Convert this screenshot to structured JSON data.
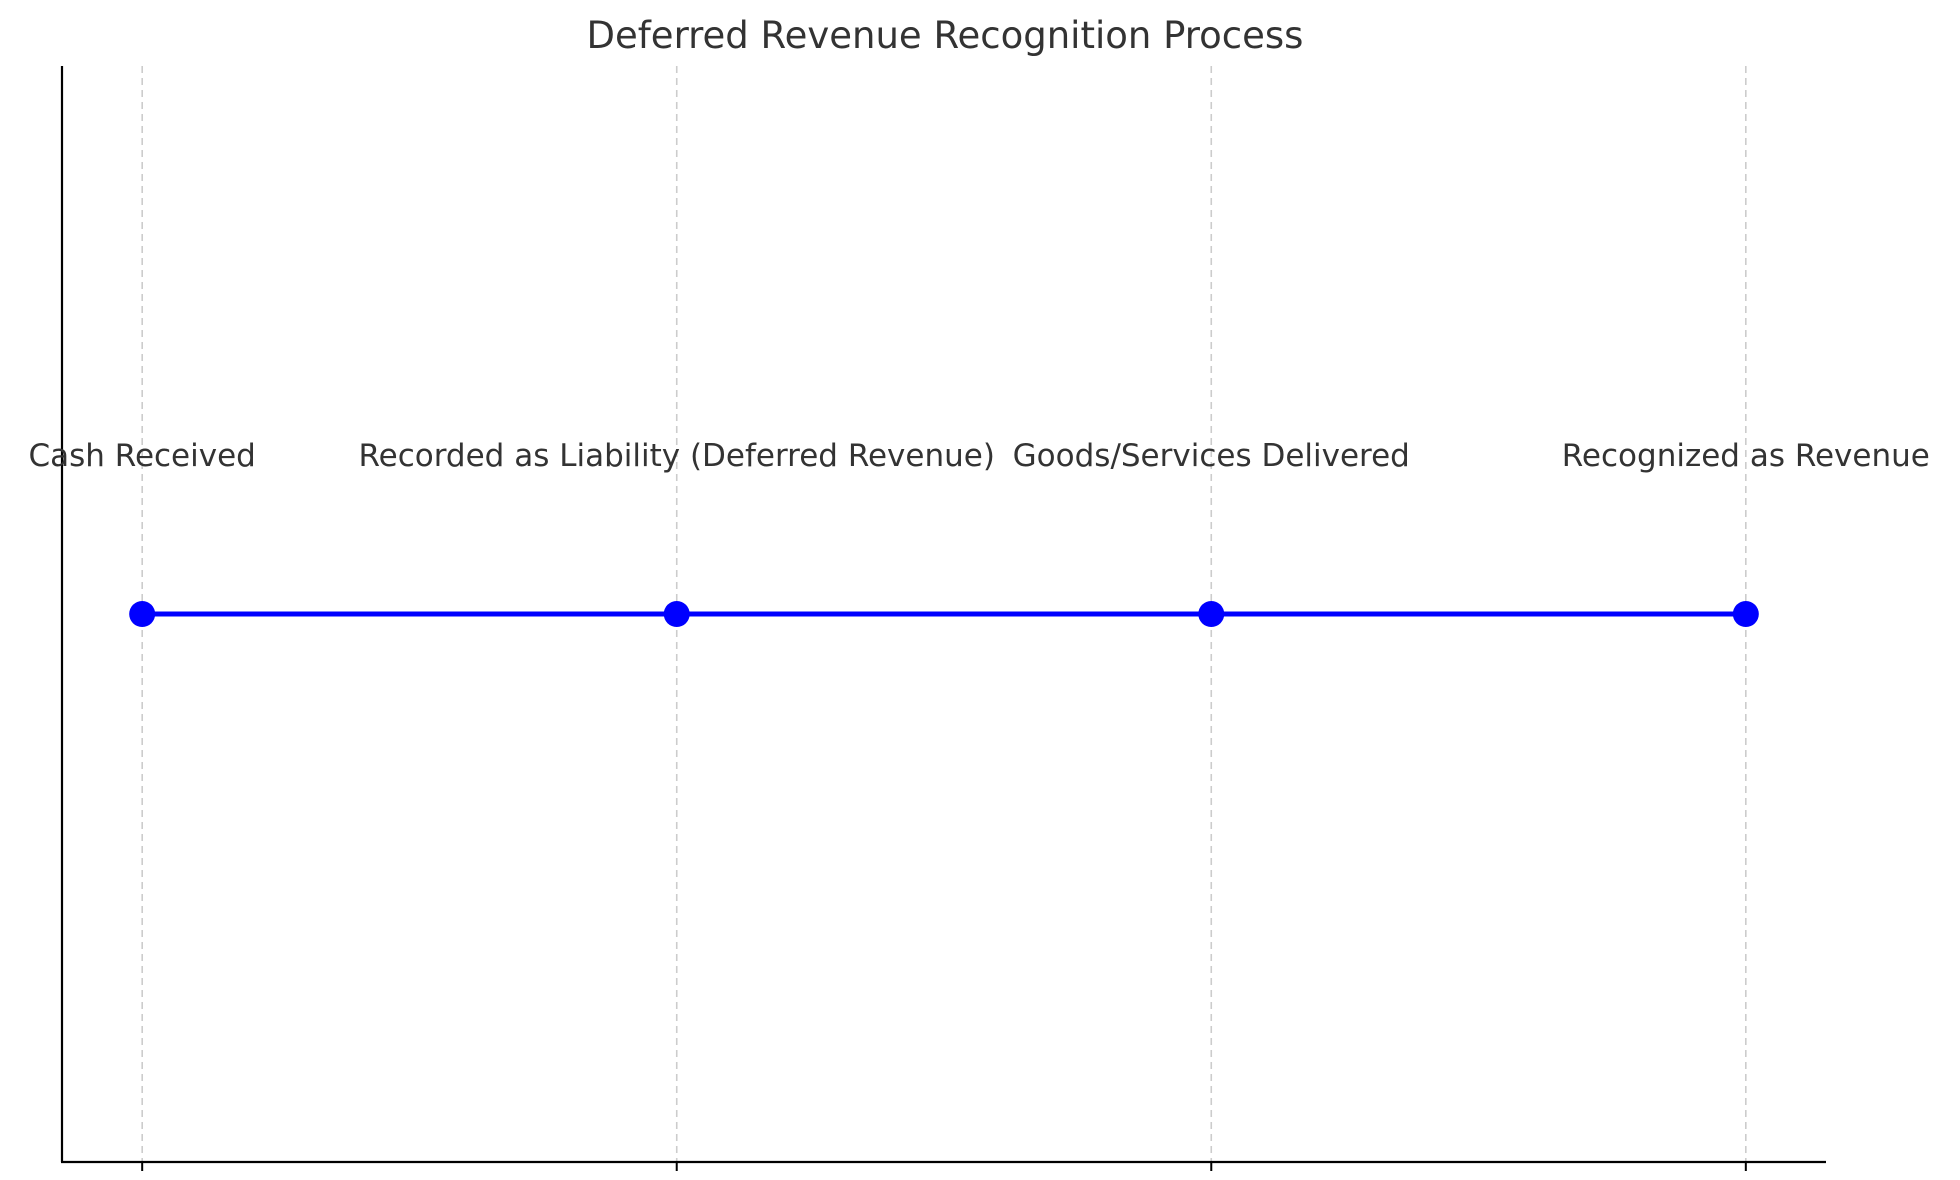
{
  "chart_data": {
    "type": "line",
    "title": "Deferred Revenue Recognition Process",
    "xlabel": "",
    "ylabel": "",
    "x": [
      1,
      2,
      3,
      4
    ],
    "y": [
      1,
      1,
      1,
      1
    ],
    "labels": [
      "Cash Received",
      "Recorded as Liability (Deferred Revenue)",
      "Goods/Services Delivered",
      "Recognized as Revenue"
    ],
    "xlim": [
      0.85,
      4.15
    ],
    "ylim": [
      0,
      2
    ],
    "grid": "x-only",
    "line_color": "#0000ff",
    "marker_color": "#0000ff",
    "legend": "none"
  }
}
